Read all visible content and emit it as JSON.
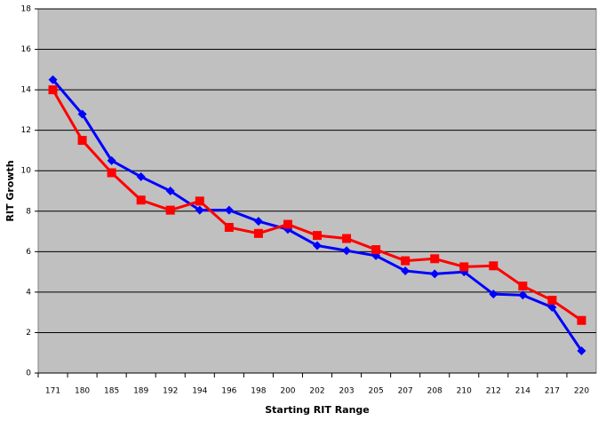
{
  "chart_data": {
    "type": "line",
    "x_label": "Starting RIT Range",
    "y_label": "RIT Growth",
    "categories": [
      "171",
      "180",
      "185",
      "189",
      "192",
      "194",
      "196",
      "198",
      "200",
      "202",
      "203",
      "205",
      "207",
      "208",
      "210",
      "212",
      "214",
      "217",
      "220"
    ],
    "series": [
      {
        "color": "#0000ff",
        "marker": "diamond",
        "values": [
          14.5,
          12.8,
          10.5,
          9.7,
          9.0,
          8.05,
          8.05,
          7.5,
          7.1,
          6.3,
          6.05,
          5.8,
          5.05,
          4.9,
          5.0,
          3.9,
          3.85,
          3.25,
          1.1
        ]
      },
      {
        "color": "#ff0000",
        "marker": "square",
        "values": [
          14.0,
          11.5,
          9.9,
          8.55,
          8.05,
          8.5,
          7.2,
          6.9,
          7.35,
          6.8,
          6.65,
          6.1,
          5.55,
          5.65,
          5.25,
          5.3,
          4.3,
          3.6,
          2.6
        ]
      }
    ],
    "ylim": [
      0,
      18
    ],
    "yticks": [
      0,
      2,
      4,
      6,
      8,
      10,
      12,
      14,
      16,
      18
    ],
    "grid": true,
    "plot_background": "#c0c0c0"
  }
}
